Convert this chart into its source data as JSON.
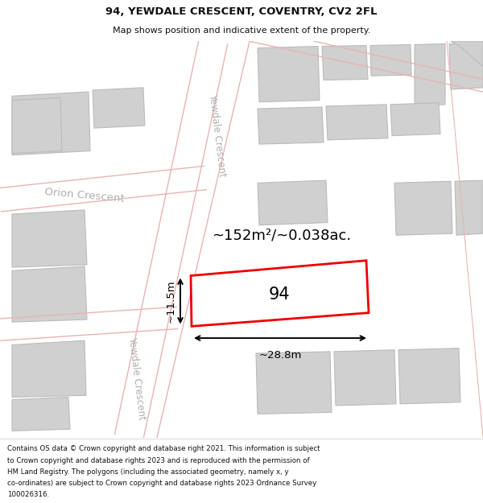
{
  "title_line1": "94, YEWDALE CRESCENT, COVENTRY, CV2 2FL",
  "title_line2": "Map shows position and indicative extent of the property.",
  "footer_text": "Contains OS data © Crown copyright and database right 2021. This information is subject to Crown copyright and database rights 2023 and is reproduced with the permission of HM Land Registry. The polygons (including the associated geometry, namely x, y co-ordinates) are subject to Crown copyright and database rights 2023 Ordnance Survey 100026316.",
  "area_text": "~152m²/~0.038ac.",
  "width_text": "~28.8m",
  "height_text": "~11.5m",
  "label_94": "94",
  "map_bg": "#f2f2f2",
  "road_fill": "#ffffff",
  "road_color": "#e8b4b4",
  "block_color": "#d0d0d0",
  "block_stroke": "#bbbbbb",
  "highlight_color": "#ee0000",
  "street_label_color": "#b0b0b0",
  "title_color": "#111111",
  "footer_color": "#111111",
  "title_fontsize": 9.5,
  "subtitle_fontsize": 8.0,
  "footer_fontsize": 6.2
}
